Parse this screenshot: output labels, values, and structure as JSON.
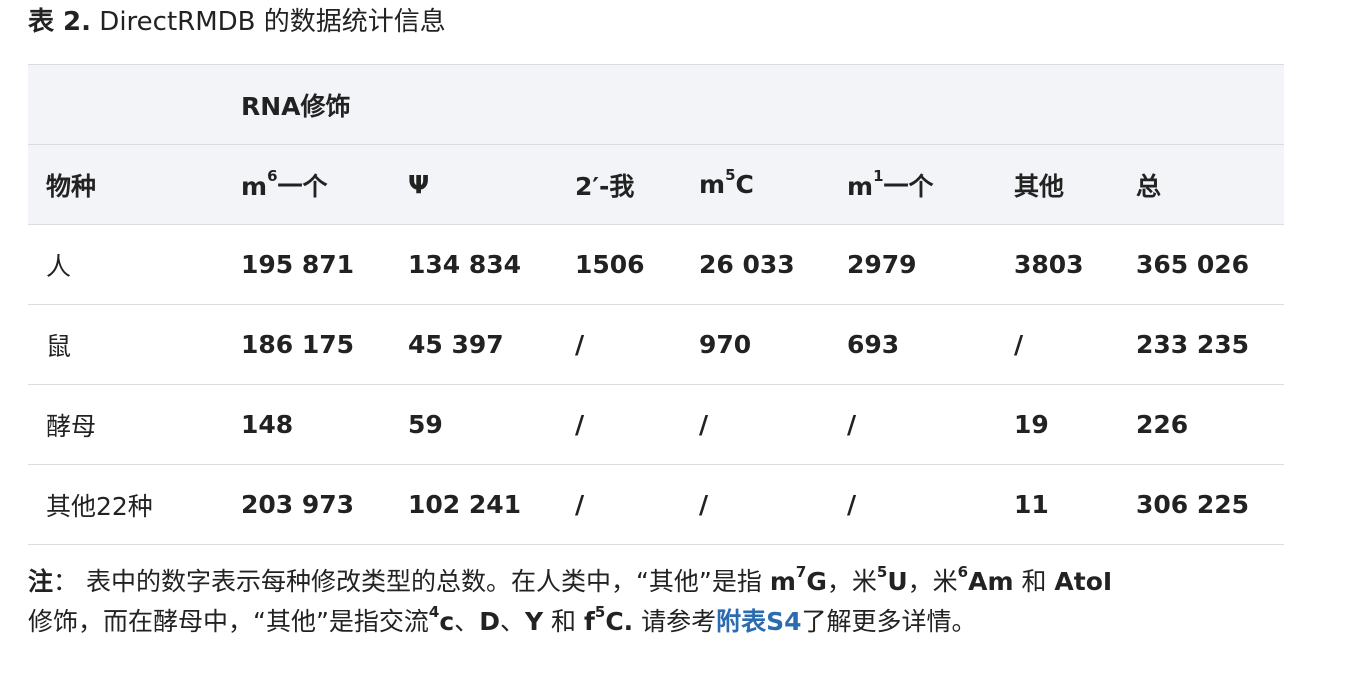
{
  "caption": {
    "label": "表 2.",
    "title": "DirectRMDB 的数据统计信息"
  },
  "table": {
    "group_header": "RNA修饰",
    "columns": [
      {
        "base": "物种",
        "sup": "",
        "suffix": ""
      },
      {
        "base": "m",
        "sup": "6",
        "suffix": "一个"
      },
      {
        "base": "Ψ",
        "sup": "",
        "suffix": ""
      },
      {
        "base": "2′-我",
        "sup": "",
        "suffix": ""
      },
      {
        "base": "m",
        "sup": "5",
        "suffix": "C"
      },
      {
        "base": "m",
        "sup": "1",
        "suffix": "一个"
      },
      {
        "base": "其他",
        "sup": "",
        "suffix": ""
      },
      {
        "base": "总",
        "sup": "",
        "suffix": ""
      }
    ],
    "rows": [
      [
        "人",
        "195 871",
        "134 834",
        "1506",
        "26 033",
        "2979",
        "3803",
        "365 026"
      ],
      [
        "鼠",
        "186 175",
        "45 397",
        "/",
        "970",
        "693",
        "/",
        "233 235"
      ],
      [
        "酵母",
        "148",
        "59",
        "/",
        "/",
        "/",
        "19",
        "226"
      ],
      [
        "其他22种",
        "203 973",
        "102 241",
        "/",
        "/",
        "/",
        "11",
        "306 225"
      ]
    ]
  },
  "note": {
    "label": "注",
    "colon": "：",
    "t1": " 表中的数字表示每种修改类型的总数。在人类中，“其他”是指 ",
    "m7g_base": "m",
    "m7g_sup": "7",
    "m7g_suffix": "G",
    "t2": "，米",
    "m5u_sup": "5",
    "m5u_suffix": "U",
    "t3": "，米",
    "m6am_sup": "6",
    "m6am_suffix": "Am",
    "t4": " 和 ",
    "atoi": "AtoI",
    "t5": "修饰，而在酵母中，“其他”是指交流",
    "ac4c_sup": "4",
    "ac4c_suffix": "c",
    "t6": "、",
    "d": "D",
    "t7": "、",
    "y": "Y",
    "t8": " 和 ",
    "f5c_base": "f",
    "f5c_sup": "5",
    "f5c_suffix": "C.",
    "t9": " 请参考",
    "link": "附表S4",
    "t10": "了解更多详情。"
  }
}
